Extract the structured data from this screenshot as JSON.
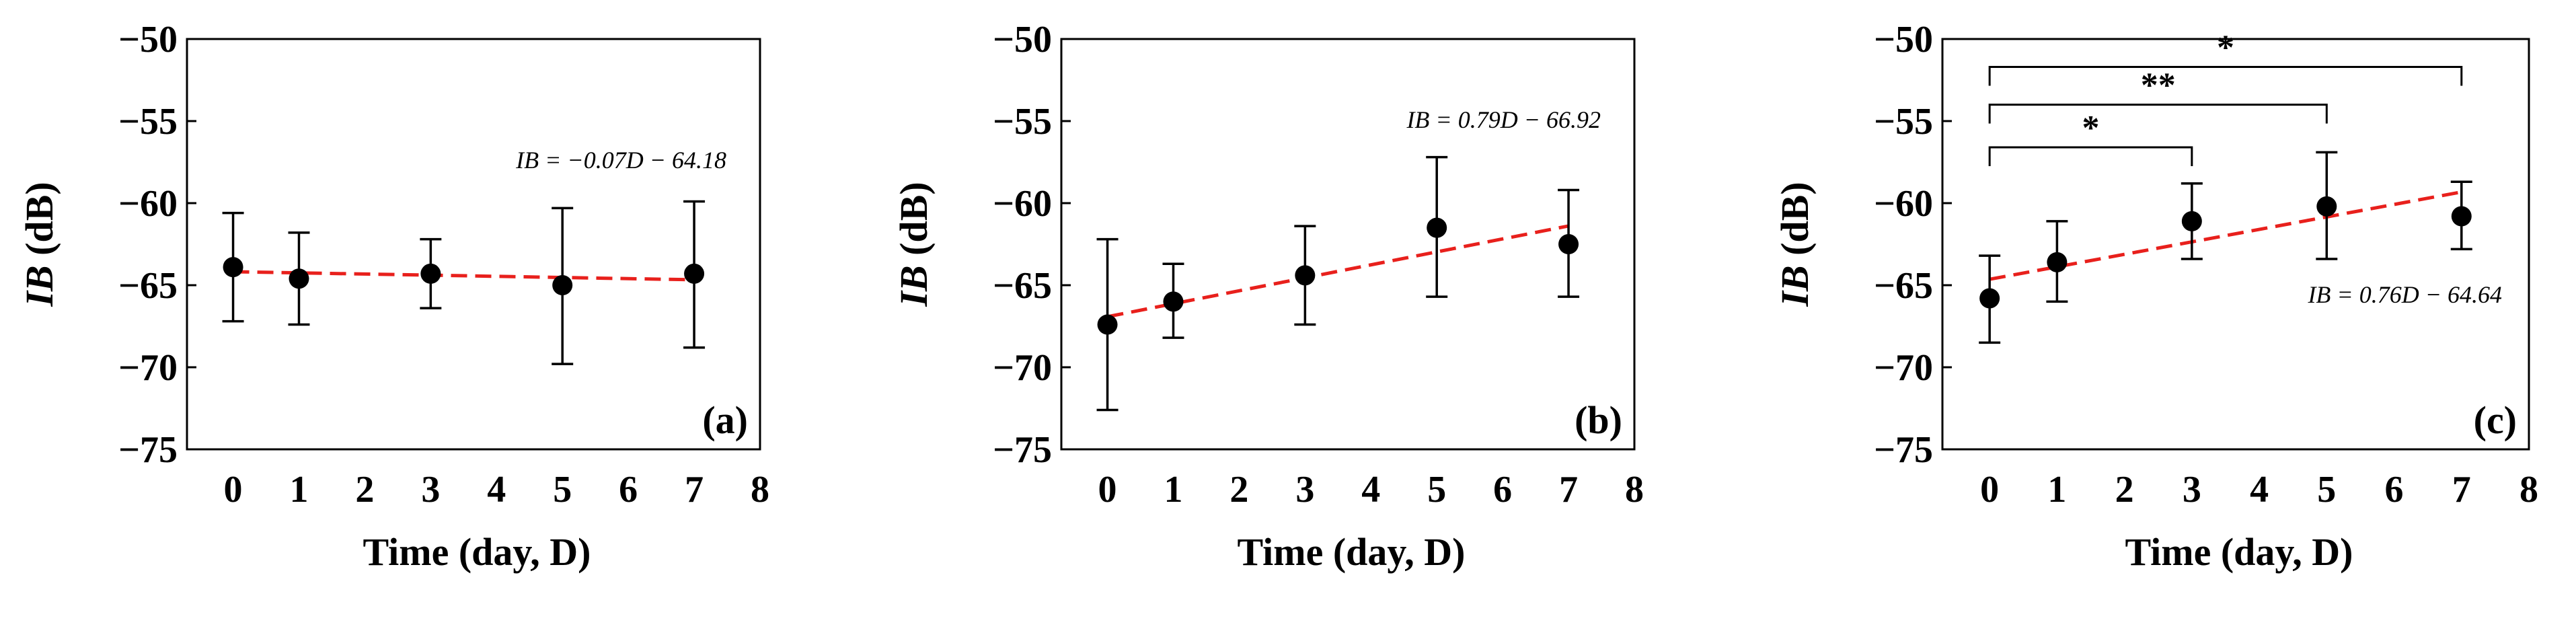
{
  "chart_data": [
    {
      "type": "scatter",
      "panel_label": "(a)",
      "xlabel": "Time (day, D)",
      "ylabel_italic": "IB",
      "ylabel_rest": " (dB)",
      "xlim": [
        -0.7,
        8
      ],
      "ylim": [
        -75,
        -50
      ],
      "xticks": [
        "0",
        "1",
        "2",
        "3",
        "4",
        "5",
        "6",
        "7",
        "8"
      ],
      "yticks": [
        "−50",
        "−55",
        "−60",
        "−65",
        "−70",
        "−75"
      ],
      "points": [
        {
          "x": 0,
          "y": -63.9,
          "err_low": -67.2,
          "err_high": -60.6
        },
        {
          "x": 1,
          "y": -64.6,
          "err_low": -67.4,
          "err_high": -61.8
        },
        {
          "x": 3,
          "y": -64.3,
          "err_low": -66.4,
          "err_high": -62.2
        },
        {
          "x": 5,
          "y": -65.0,
          "err_low": -69.8,
          "err_high": -60.3
        },
        {
          "x": 7,
          "y": -64.3,
          "err_low": -68.8,
          "err_high": -59.9
        }
      ],
      "fit": {
        "slope": -0.07,
        "intercept": -64.18,
        "x_range": [
          0,
          7
        ],
        "color": "#e8201c"
      },
      "equation": "IB = −0.07D − 64.18",
      "significance": []
    },
    {
      "type": "scatter",
      "panel_label": "(b)",
      "xlabel": "Time (day, D)",
      "ylabel_italic": "IB",
      "ylabel_rest": " (dB)",
      "xlim": [
        -0.7,
        8
      ],
      "ylim": [
        -75,
        -50
      ],
      "xticks": [
        "0",
        "1",
        "2",
        "3",
        "4",
        "5",
        "6",
        "7",
        "8"
      ],
      "yticks": [
        "−50",
        "−55",
        "−60",
        "−65",
        "−70",
        "−75"
      ],
      "points": [
        {
          "x": 0,
          "y": -67.4,
          "err_low": -72.6,
          "err_high": -62.2
        },
        {
          "x": 1,
          "y": -66.0,
          "err_low": -68.2,
          "err_high": -63.7
        },
        {
          "x": 3,
          "y": -64.4,
          "err_low": -67.4,
          "err_high": -61.4
        },
        {
          "x": 5,
          "y": -61.5,
          "err_low": -65.7,
          "err_high": -57.2
        },
        {
          "x": 7,
          "y": -62.5,
          "err_low": -65.7,
          "err_high": -59.2
        }
      ],
      "fit": {
        "slope": 0.79,
        "intercept": -66.92,
        "x_range": [
          0,
          7
        ],
        "color": "#e8201c"
      },
      "equation": "IB = 0.79D − 66.92",
      "significance": []
    },
    {
      "type": "scatter",
      "panel_label": "(c)",
      "xlabel": "Time (day, D)",
      "ylabel_italic": "IB",
      "ylabel_rest": " (dB)",
      "xlim": [
        -0.7,
        8
      ],
      "ylim": [
        -75,
        -50
      ],
      "xticks": [
        "0",
        "1",
        "2",
        "3",
        "4",
        "5",
        "6",
        "7",
        "8"
      ],
      "yticks": [
        "−50",
        "−55",
        "−60",
        "−65",
        "−70",
        "−75"
      ],
      "points": [
        {
          "x": 0,
          "y": -65.8,
          "err_low": -68.5,
          "err_high": -63.2
        },
        {
          "x": 1,
          "y": -63.6,
          "err_low": -66.0,
          "err_high": -61.1
        },
        {
          "x": 3,
          "y": -61.1,
          "err_low": -63.4,
          "err_high": -58.8
        },
        {
          "x": 5,
          "y": -60.2,
          "err_low": -63.4,
          "err_high": -56.9
        },
        {
          "x": 7,
          "y": -60.8,
          "err_low": -62.8,
          "err_high": -58.7
        }
      ],
      "fit": {
        "slope": 0.76,
        "intercept": -64.64,
        "x_range": [
          0,
          7
        ],
        "color": "#e8201c"
      },
      "equation": "IB = 0.76D − 64.64",
      "significance": [
        {
          "from_x": 0,
          "to_x": 3,
          "level_y": -56.6,
          "label": "*"
        },
        {
          "from_x": 0,
          "to_x": 5,
          "level_y": -54.0,
          "label": "**"
        },
        {
          "from_x": 0,
          "to_x": 7,
          "level_y": -51.7,
          "label": "*"
        }
      ]
    }
  ]
}
